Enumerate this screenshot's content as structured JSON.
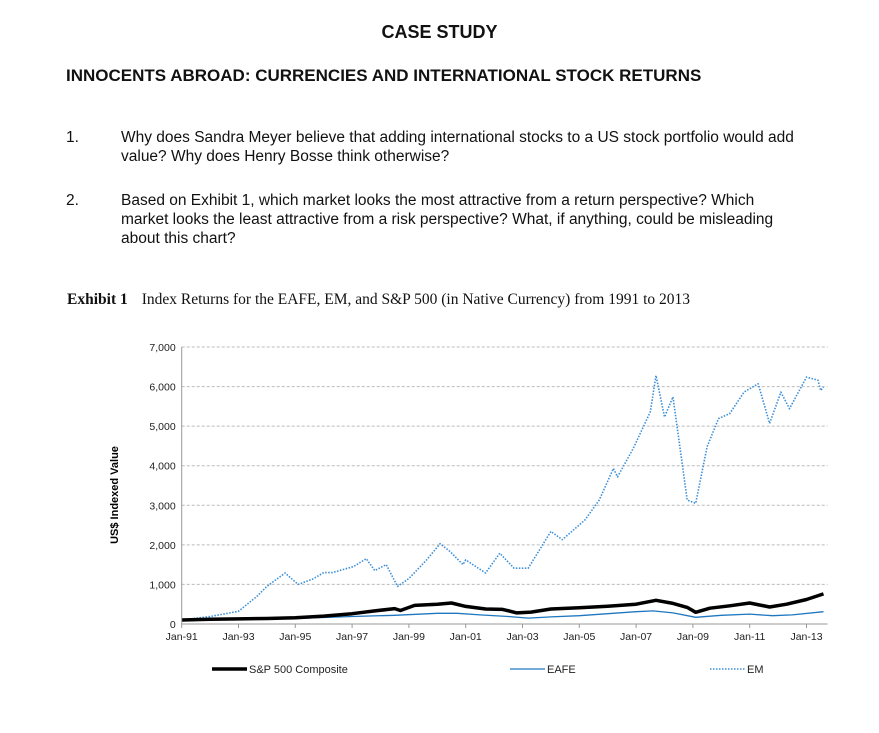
{
  "header": {
    "case_label": "CASE STUDY",
    "title": "INNOCENTS ABROAD: CURRENCIES AND INTERNATIONAL STOCK RETURNS"
  },
  "questions": [
    {
      "number": "1.",
      "text": "Why does Sandra Meyer believe that adding international stocks to a US stock portfolio would add value? Why does Henry Bosse think otherwise?"
    },
    {
      "number": "2.",
      "text": "Based on Exhibit 1, which market looks the most attractive from a return perspective? Which market looks the least attractive from a risk perspective? What, if anything, could be misleading about this chart?"
    }
  ],
  "exhibit": {
    "label": "Exhibit 1",
    "caption": "Index Returns for the EAFE, EM, and S&P 500 (in Native Currency) from 1991 to 2013"
  },
  "chart_data": {
    "type": "line",
    "title": "Index Returns for the EAFE, EM, and S&P 500 (in Native Currency) from 1991 to 2013",
    "xlabel": "",
    "ylabel": "US$ Indexed Value",
    "ylim": [
      0,
      7000
    ],
    "xlim": [
      1991,
      2013.6
    ],
    "yticks": [
      0,
      1000,
      2000,
      3000,
      4000,
      5000,
      6000,
      7000
    ],
    "ytick_labels": [
      "0",
      "1,000",
      "2,000",
      "3,000",
      "4,000",
      "5,000",
      "6,000",
      "7,000"
    ],
    "xticks": [
      1991,
      1993,
      1995,
      1997,
      1999,
      2001,
      2003,
      2005,
      2007,
      2009,
      2011,
      2013
    ],
    "xtick_labels": [
      "Jan-91",
      "Jan-93",
      "Jan-95",
      "Jan-97",
      "Jan-99",
      "Jan-01",
      "Jan-03",
      "Jan-05",
      "Jan-07",
      "Jan-09",
      "Jan-11",
      "Jan-13"
    ],
    "grid": true,
    "legend_position": "bottom",
    "series": [
      {
        "name": "S&P 500 Composite",
        "color": "#000000",
        "style": "thick",
        "x": [
          1991,
          1992,
          1993,
          1994,
          1995,
          1996,
          1997,
          1997.8,
          1998.5,
          1998.7,
          1999.2,
          2000,
          2000.5,
          2001,
          2001.7,
          2002.3,
          2002.8,
          2003.3,
          2004,
          2005,
          2006,
          2007,
          2007.7,
          2008.3,
          2008.8,
          2009.1,
          2009.6,
          2010.3,
          2011,
          2011.7,
          2012.3,
          2013,
          2013.6
        ],
        "values": [
          100,
          120,
          130,
          140,
          160,
          200,
          260,
          330,
          390,
          340,
          470,
          500,
          530,
          445,
          380,
          370,
          280,
          300,
          380,
          410,
          450,
          500,
          600,
          520,
          420,
          295,
          400,
          460,
          530,
          430,
          500,
          620,
          760
        ]
      },
      {
        "name": "EAFE",
        "color": "#1f77c0",
        "style": "solid",
        "x": [
          1991,
          1993,
          1995,
          1997,
          1998.5,
          2000,
          2000.7,
          2001.5,
          2002.5,
          2003.2,
          2004,
          2005,
          2006,
          2007,
          2007.6,
          2008.3,
          2009.1,
          2010,
          2011,
          2011.8,
          2012.5,
          2013.6
        ],
        "values": [
          100,
          110,
          140,
          190,
          220,
          270,
          270,
          230,
          190,
          150,
          180,
          210,
          260,
          310,
          330,
          280,
          170,
          220,
          250,
          210,
          230,
          310
        ]
      },
      {
        "name": "EM",
        "color": "#3b8fd8",
        "style": "dotted",
        "x": [
          1991,
          1992,
          1993,
          1993.65,
          1994,
          1994.64,
          1995.1,
          1995.6,
          1996,
          1996.3,
          1997.05,
          1997.5,
          1997.8,
          1998.2,
          1998.6,
          1999,
          1999.6,
          2000.1,
          2000.45,
          2000.9,
          2001,
          2001.7,
          2002.2,
          2002.7,
          2003.2,
          2004,
          2004.4,
          2005.2,
          2005.7,
          2006.2,
          2006.35,
          2006.9,
          2007.5,
          2007.7,
          2008,
          2008.3,
          2008.8,
          2009.1,
          2009.5,
          2009.9,
          2010.3,
          2010.8,
          2011.3,
          2011.7,
          2012.1,
          2012.4,
          2013,
          2013.4,
          2013.5,
          2013.6
        ],
        "values": [
          100,
          190,
          320,
          700,
          950,
          1290,
          1000,
          1130,
          1300,
          1300,
          1450,
          1650,
          1350,
          1500,
          950,
          1150,
          1600,
          2030,
          1830,
          1500,
          1620,
          1290,
          1790,
          1410,
          1410,
          2340,
          2130,
          2630,
          3130,
          3930,
          3720,
          4440,
          5360,
          6280,
          5230,
          5740,
          3130,
          3050,
          4480,
          5190,
          5320,
          5860,
          6070,
          5070,
          5860,
          5440,
          6240,
          6160,
          5900,
          5990
        ]
      }
    ]
  }
}
